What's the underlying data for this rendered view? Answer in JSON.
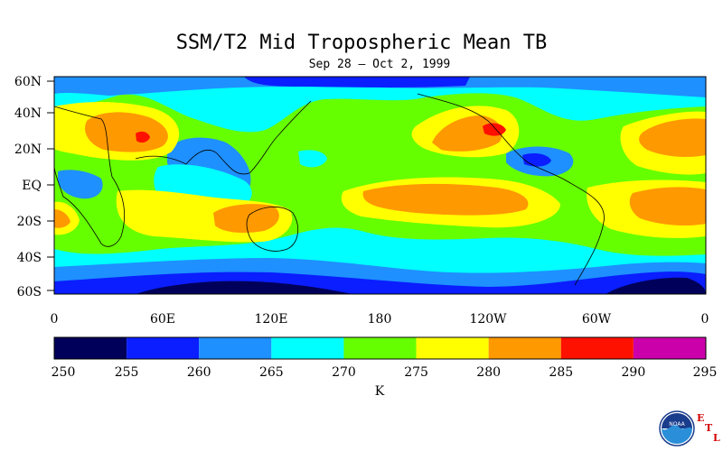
{
  "title": "SSM/T2 Mid Tropospheric Mean TB",
  "subtitle": "Sep 28 – Oct 2, 1999",
  "map": {
    "lat_labels": [
      "60N",
      "40N",
      "20N",
      "EQ",
      "20S",
      "40S",
      "60S"
    ],
    "lon_labels": [
      "0",
      "60E",
      "120E",
      "180",
      "120W",
      "60W",
      "0"
    ]
  },
  "colorbar": {
    "unit": "K",
    "ticks": [
      "250",
      "255",
      "260",
      "265",
      "270",
      "275",
      "280",
      "285",
      "290",
      "295"
    ],
    "colors": [
      "#00005a",
      "#0a1eff",
      "#1e90ff",
      "#00ffff",
      "#66ff00",
      "#ffff00",
      "#ff9900",
      "#ff1100",
      "#cc00aa"
    ]
  },
  "logo": {
    "agency": "NOAA",
    "lab_letters": [
      "E",
      "T",
      "L"
    ]
  }
}
